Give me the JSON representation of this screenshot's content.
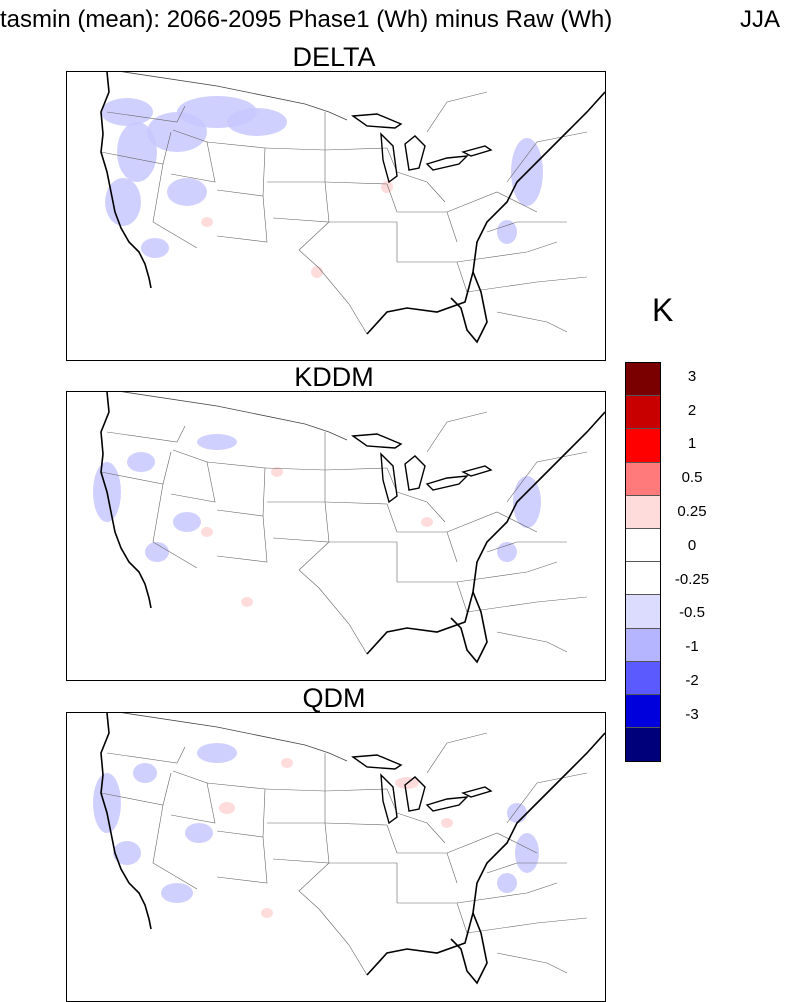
{
  "title": {
    "main": "tasmin (mean): 2066-2095 Phase1 (Wh) minus Raw (Wh)",
    "season": "JJA"
  },
  "panels": [
    {
      "title": "DELTA"
    },
    {
      "title": "KDDM"
    },
    {
      "title": "QDM"
    }
  ],
  "colorbar": {
    "unit": "K",
    "colors": [
      "#7a0000",
      "#c80000",
      "#ff0000",
      "#ff7a7a",
      "#ffdcdc",
      "#ffffff",
      "#ffffff",
      "#dcdcff",
      "#b4b4ff",
      "#5a5aff",
      "#0000dc",
      "#00007a"
    ],
    "labels": [
      "3",
      "2",
      "1",
      "0.5",
      "0.25",
      "0",
      "-0.25",
      "-0.5",
      "-1",
      "-2",
      "-3"
    ]
  }
}
